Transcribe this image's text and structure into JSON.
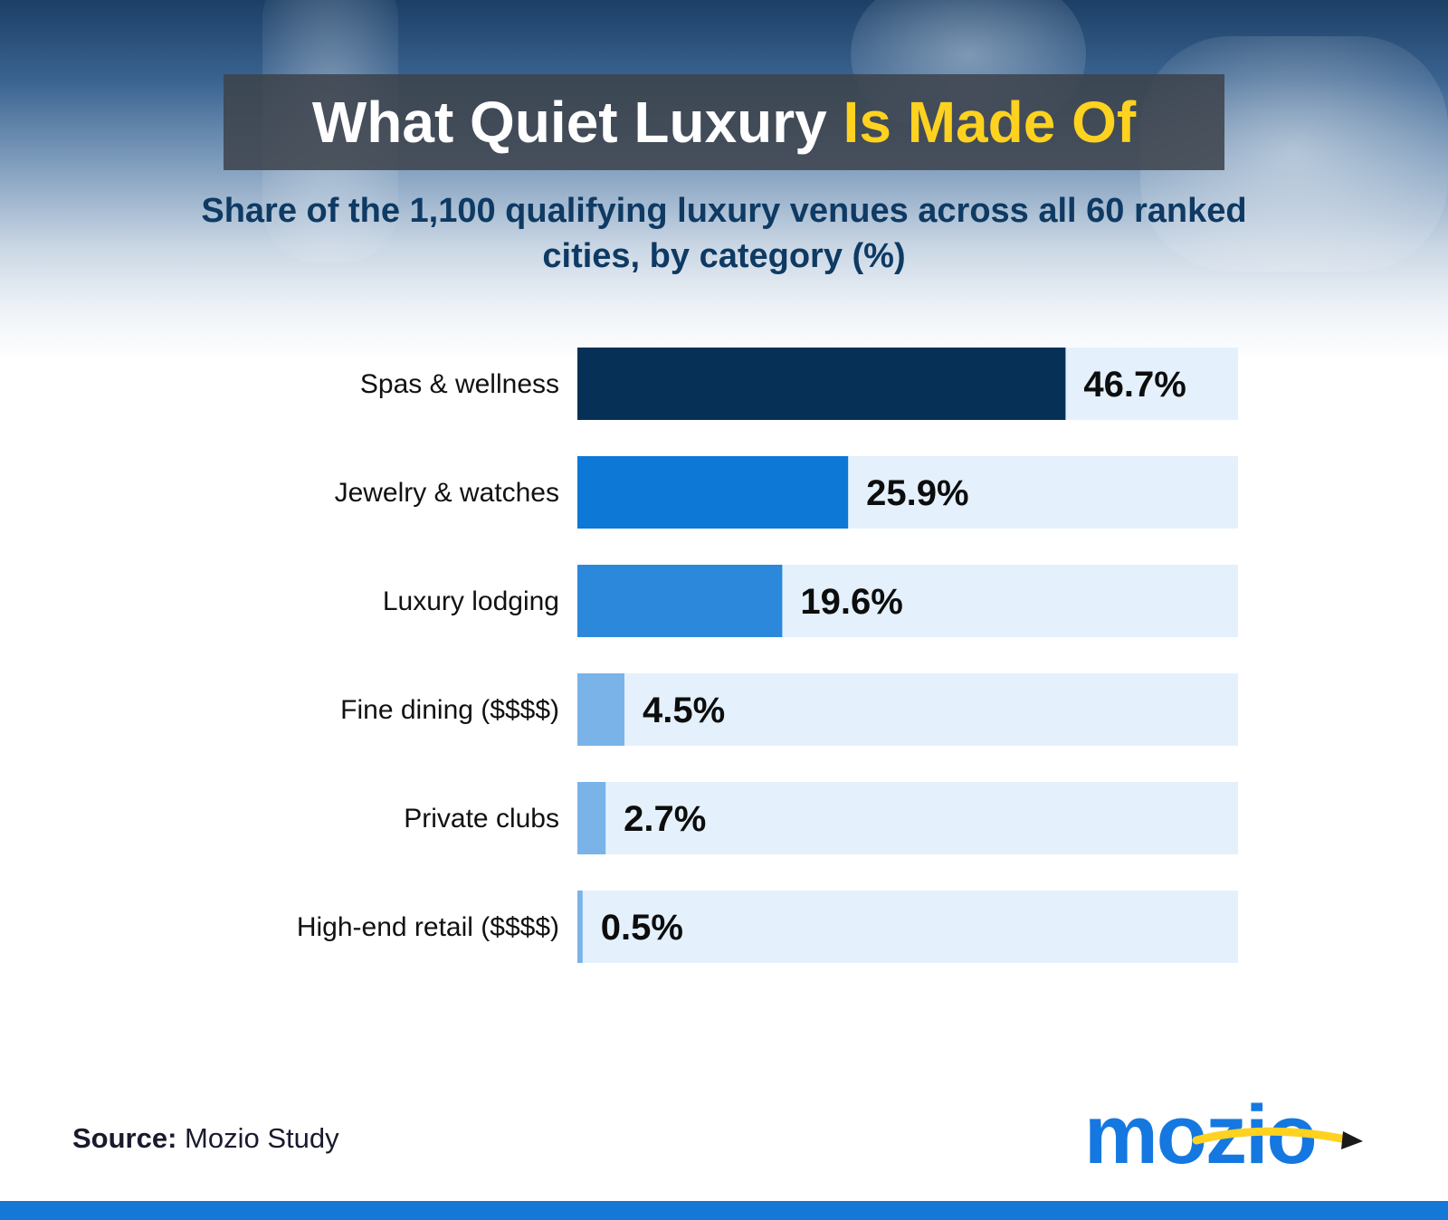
{
  "header": {
    "title_main": "What Quiet Luxury",
    "title_highlight": "Is Made Of",
    "subtitle": "Share of the 1,100 qualifying luxury venues across all 60 ranked cities, by category (%)"
  },
  "chart_data": {
    "type": "bar",
    "orientation": "horizontal",
    "title": "What Quiet Luxury Is Made Of",
    "subtitle": "Share of the 1,100 qualifying luxury venues across all 60 ranked cities, by category (%)",
    "categories": [
      "Spas & wellness",
      "Jewelry & watches",
      "Luxury lodging",
      "Fine dining ($$$$)",
      "Private clubs",
      "High-end retail ($$$$)"
    ],
    "values": [
      46.7,
      25.9,
      19.6,
      4.5,
      2.7,
      0.5
    ],
    "value_labels": [
      "46.7%",
      "25.9%",
      "19.6%",
      "4.5%",
      "2.7%",
      "0.5%"
    ],
    "bar_colors": [
      "#063056",
      "#0d78d6",
      "#2b88db",
      "#7ab3e8",
      "#7ab3e8",
      "#7ab3e8"
    ],
    "track_color": "#e4f0fc",
    "xlim": [
      0,
      63.2
    ],
    "grid": false,
    "legend": "none"
  },
  "footer": {
    "source_label": "Source:",
    "source_text": "Mozio Study",
    "logo": "mozio",
    "accent_color": "#1578d6"
  }
}
